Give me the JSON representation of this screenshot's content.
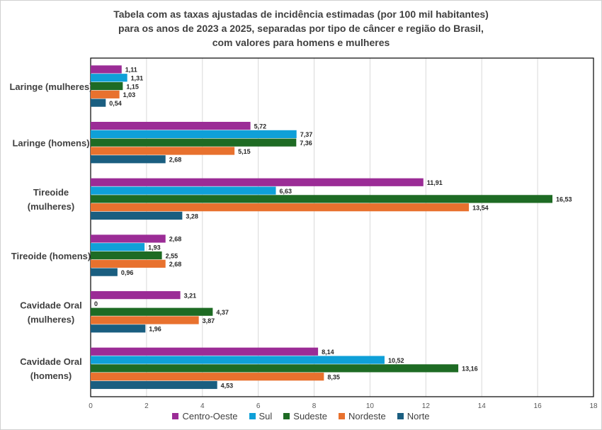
{
  "chart_data": {
    "type": "bar",
    "orientation": "horizontal",
    "title_lines": [
      "Tabela com as taxas ajustadas de incidência estimadas (por 100 mil habitantes)",
      "para os anos de 2023 a 2025, separadas por tipo de câncer e região do Brasil,",
      "com valores para homens e mulheres"
    ],
    "categories": [
      [
        "Laringe (mulheres)"
      ],
      [
        "Laringe (homens)"
      ],
      [
        "Tireoide",
        "(mulheres)"
      ],
      [
        "Tireoide (homens)"
      ],
      [
        "Cavidade Oral",
        "(mulheres)"
      ],
      [
        "Cavidade Oral",
        "(homens)"
      ]
    ],
    "series": [
      {
        "name": "Centro-Oeste",
        "color": "#9B2C96",
        "values": [
          1.11,
          5.72,
          11.91,
          2.68,
          3.21,
          8.14
        ],
        "labels": [
          "1,11",
          "5,72",
          "11,91",
          "2,68",
          "3,21",
          "8,14"
        ]
      },
      {
        "name": "Sul",
        "color": "#0FA0D8",
        "values": [
          1.31,
          7.37,
          6.63,
          1.93,
          0,
          10.52
        ],
        "labels": [
          "1,31",
          "7,37",
          "6,63",
          "1,93",
          "0",
          "10,52"
        ]
      },
      {
        "name": "Sudeste",
        "color": "#1E6B24",
        "values": [
          1.15,
          7.36,
          16.53,
          2.55,
          4.37,
          13.16
        ],
        "labels": [
          "1,15",
          "7,36",
          "16,53",
          "2,55",
          "4,37",
          "13,16"
        ]
      },
      {
        "name": "Nordeste",
        "color": "#E8712E",
        "values": [
          1.03,
          5.15,
          13.54,
          2.68,
          3.87,
          8.35
        ],
        "labels": [
          "1,03",
          "5,15",
          "13,54",
          "2,68",
          "3,87",
          "8,35"
        ]
      },
      {
        "name": "Norte",
        "color": "#1A5E80",
        "values": [
          0.54,
          2.68,
          3.28,
          0.96,
          1.96,
          4.53
        ],
        "labels": [
          "0,54",
          "2,68",
          "3,28",
          "0,96",
          "1,96",
          "4,53"
        ]
      }
    ],
    "xlim": [
      0,
      18
    ],
    "xticks": [
      0,
      2,
      4,
      6,
      8,
      10,
      12,
      14,
      16,
      18
    ],
    "grid": true,
    "legend_position": "bottom"
  }
}
